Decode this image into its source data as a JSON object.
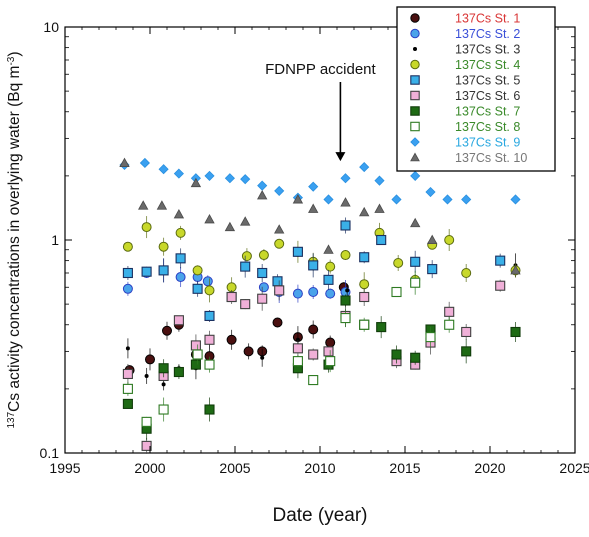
{
  "chart_data": {
    "type": "scatter",
    "xlabel": "Date (year)",
    "ylabel_prefix": "137",
    "ylabel_main": "Cs activity concentrations in overlying water (Bq m",
    "ylabel_unit_exp": "-3",
    "ylabel_suffix": ")",
    "xlim": [
      1995,
      2025
    ],
    "ylim": [
      0.1,
      10
    ],
    "yscale": "log",
    "x_ticks": [
      1995,
      2000,
      2005,
      2010,
      2015,
      2020,
      2025
    ],
    "y_ticks": [
      {
        "value": 0.1,
        "label": "0.1"
      },
      {
        "value": 1,
        "label": "1"
      },
      {
        "value": 10,
        "label": "10"
      }
    ],
    "legend_position": "top-right",
    "annotations": [
      {
        "text": "FDNPP accident",
        "x": 2011.2,
        "y": 2.2
      }
    ],
    "series": [
      {
        "name": "137Cs St. 1",
        "color": "#d93636",
        "marker": "circle",
        "fill": "#4a1010",
        "stroke": "#000000",
        "points": [
          [
            1998.8,
            0.245
          ],
          [
            2000,
            0.275
          ],
          [
            2001,
            0.375
          ],
          [
            2001.7,
            0.4
          ],
          [
            2002.7,
            0.29
          ],
          [
            2003.5,
            0.285
          ],
          [
            2004.8,
            0.34
          ],
          [
            2005.8,
            0.3
          ],
          [
            2006.6,
            0.3
          ],
          [
            2007.5,
            0.41
          ],
          [
            2008.7,
            0.35
          ],
          [
            2009.6,
            0.38
          ],
          [
            2010.6,
            0.33
          ],
          [
            2011.4,
            0.6
          ]
        ]
      },
      {
        "name": "137Cs St. 2",
        "color": "#3a4fd8",
        "marker": "circle",
        "fill": "#4aa3ea",
        "stroke": "#2b3fc4",
        "points": [
          [
            1998.7,
            0.59
          ],
          [
            1999.8,
            0.7
          ],
          [
            2000.8,
            0.72
          ],
          [
            2001.8,
            0.67
          ],
          [
            2002.8,
            0.67
          ],
          [
            2003.4,
            0.64
          ],
          [
            2006.7,
            0.6
          ],
          [
            2007.6,
            0.57
          ],
          [
            2008.7,
            0.56
          ],
          [
            2009.6,
            0.57
          ],
          [
            2010.6,
            0.56
          ],
          [
            2011.5,
            0.57
          ]
        ]
      },
      {
        "name": "137Cs St. 3",
        "color": "#333333",
        "marker": "dot",
        "fill": "#000000",
        "stroke": "#000000",
        "points": [
          [
            1998.7,
            0.31
          ],
          [
            1999.8,
            0.23
          ],
          [
            2000.8,
            0.21
          ],
          [
            2001.7,
            0.25
          ],
          [
            2002.7,
            0.25
          ],
          [
            2006.6,
            0.28
          ],
          [
            2008.7,
            0.34
          ],
          [
            2011.6,
            0.58
          ],
          [
            2021.5,
            0.76
          ]
        ]
      },
      {
        "name": "137Cs St. 4",
        "color": "#3a8a2a",
        "marker": "circle",
        "fill": "#c8d82a",
        "stroke": "#5a6a10",
        "points": [
          [
            1998.7,
            0.93
          ],
          [
            1999.8,
            1.15
          ],
          [
            2000.8,
            0.93
          ],
          [
            2001.8,
            1.08
          ],
          [
            2002.8,
            0.72
          ],
          [
            2003.5,
            0.58
          ],
          [
            2004.8,
            0.6
          ],
          [
            2005.7,
            0.84
          ],
          [
            2006.7,
            0.85
          ],
          [
            2007.6,
            0.96
          ],
          [
            2008.7,
            0.88
          ],
          [
            2009.6,
            0.79
          ],
          [
            2010.6,
            0.75
          ],
          [
            2011.5,
            0.85
          ],
          [
            2012.6,
            0.62
          ],
          [
            2013.5,
            1.08
          ],
          [
            2014.6,
            0.78
          ],
          [
            2015.6,
            0.65
          ],
          [
            2016.6,
            0.95
          ],
          [
            2017.6,
            1.0
          ],
          [
            2018.6,
            0.7
          ],
          [
            2021.5,
            0.72
          ]
        ]
      },
      {
        "name": "137Cs St. 5",
        "color": "#333333",
        "marker": "square",
        "fill": "#3ab0e8",
        "stroke": "#1a3060",
        "points": [
          [
            1998.7,
            0.7
          ],
          [
            1999.8,
            0.71
          ],
          [
            2000.8,
            0.72
          ],
          [
            2001.8,
            0.82
          ],
          [
            2002.8,
            0.59
          ],
          [
            2003.5,
            0.44
          ],
          [
            2004.8,
            0.54
          ],
          [
            2005.6,
            0.75
          ],
          [
            2006.6,
            0.7
          ],
          [
            2007.5,
            0.64
          ],
          [
            2008.7,
            0.88
          ],
          [
            2009.6,
            0.76
          ],
          [
            2010.5,
            0.65
          ],
          [
            2011.5,
            1.17
          ],
          [
            2012.6,
            0.83
          ],
          [
            2013.6,
            1.0
          ],
          [
            2015.6,
            0.79
          ],
          [
            2016.6,
            0.73
          ],
          [
            2020.6,
            0.8
          ]
        ]
      },
      {
        "name": "137Cs St. 6",
        "color": "#333333",
        "marker": "square",
        "fill": "#f0b0d8",
        "stroke": "#404040",
        "points": [
          [
            1998.7,
            0.235
          ],
          [
            1999.8,
            0.108
          ],
          [
            2000.8,
            0.23
          ],
          [
            2001.7,
            0.42
          ],
          [
            2002.7,
            0.32
          ],
          [
            2003.5,
            0.34
          ],
          [
            2004.8,
            0.54
          ],
          [
            2005.6,
            0.5
          ],
          [
            2006.6,
            0.53
          ],
          [
            2007.6,
            0.58
          ],
          [
            2008.7,
            0.31
          ],
          [
            2009.6,
            0.29
          ],
          [
            2010.5,
            0.3
          ],
          [
            2011.5,
            0.44
          ],
          [
            2012.6,
            0.54
          ],
          [
            2014.5,
            0.27
          ],
          [
            2015.6,
            0.26
          ],
          [
            2016.5,
            0.33
          ],
          [
            2017.6,
            0.46
          ],
          [
            2018.6,
            0.37
          ],
          [
            2020.6,
            0.61
          ]
        ]
      },
      {
        "name": "137Cs St. 7",
        "color": "#3a8a2a",
        "marker": "square",
        "fill": "#1e6a14",
        "stroke": "#103c0a",
        "points": [
          [
            1998.7,
            0.17
          ],
          [
            1999.8,
            0.13
          ],
          [
            2000.8,
            0.25
          ],
          [
            2001.7,
            0.24
          ],
          [
            2002.7,
            0.26
          ],
          [
            2003.5,
            0.16
          ],
          [
            2008.7,
            0.25
          ],
          [
            2010.5,
            0.26
          ],
          [
            2011.5,
            0.52
          ],
          [
            2012.6,
            0.4
          ],
          [
            2013.6,
            0.39
          ],
          [
            2014.5,
            0.29
          ],
          [
            2015.6,
            0.28
          ],
          [
            2016.5,
            0.38
          ],
          [
            2018.6,
            0.3
          ],
          [
            2021.5,
            0.37
          ]
        ]
      },
      {
        "name": "137Cs St. 8",
        "color": "#3a8a2a",
        "marker": "square",
        "fill": "#ffffff",
        "stroke": "#2e7a22",
        "points": [
          [
            1998.7,
            0.2
          ],
          [
            1999.8,
            0.14
          ],
          [
            2000.8,
            0.16
          ],
          [
            2002.8,
            0.29
          ],
          [
            2003.5,
            0.26
          ],
          [
            2008.7,
            0.27
          ],
          [
            2009.6,
            0.22
          ],
          [
            2010.6,
            0.27
          ],
          [
            2011.5,
            0.43
          ],
          [
            2012.6,
            0.4
          ],
          [
            2014.5,
            0.57
          ],
          [
            2015.6,
            0.63
          ],
          [
            2016.5,
            0.35
          ],
          [
            2017.6,
            0.4
          ]
        ]
      },
      {
        "name": "137Cs St. 9",
        "color": "#2aa8e0",
        "marker": "diamond",
        "fill": "#3aa0f0",
        "stroke": "#2a90e0",
        "points": [
          [
            1998.5,
            2.25
          ],
          [
            1999.7,
            2.3
          ],
          [
            2000.8,
            2.15
          ],
          [
            2001.7,
            2.05
          ],
          [
            2002.7,
            1.95
          ],
          [
            2003.5,
            2.0
          ],
          [
            2004.7,
            1.95
          ],
          [
            2005.6,
            1.93
          ],
          [
            2006.6,
            1.8
          ],
          [
            2007.6,
            1.7
          ],
          [
            2008.7,
            1.58
          ],
          [
            2009.6,
            1.78
          ],
          [
            2010.5,
            1.55
          ],
          [
            2011.5,
            1.95
          ],
          [
            2012.6,
            2.2
          ],
          [
            2013.5,
            1.9
          ],
          [
            2014.5,
            1.55
          ],
          [
            2015.6,
            2.0
          ],
          [
            2016.5,
            1.68
          ],
          [
            2017.5,
            1.55
          ],
          [
            2018.6,
            1.55
          ],
          [
            2021.5,
            1.55
          ]
        ]
      },
      {
        "name": "137Cs St. 10",
        "color": "#777777",
        "marker": "triangle",
        "fill": "#6a6a6a",
        "stroke": "#4a4a4a",
        "points": [
          [
            1998.5,
            2.3
          ],
          [
            1999.6,
            1.45
          ],
          [
            2000.7,
            1.45
          ],
          [
            2001.7,
            1.32
          ],
          [
            2002.7,
            1.85
          ],
          [
            2003.5,
            1.25
          ],
          [
            2004.7,
            1.15
          ],
          [
            2005.6,
            1.22
          ],
          [
            2006.6,
            1.62
          ],
          [
            2007.6,
            1.12
          ],
          [
            2008.7,
            1.55
          ],
          [
            2009.6,
            1.4
          ],
          [
            2010.5,
            0.9
          ],
          [
            2011.5,
            1.5
          ],
          [
            2012.6,
            1.35
          ],
          [
            2013.5,
            1.4
          ],
          [
            2015.6,
            1.2
          ],
          [
            2016.6,
            1.0
          ],
          [
            2021.5,
            0.72
          ]
        ]
      }
    ]
  }
}
